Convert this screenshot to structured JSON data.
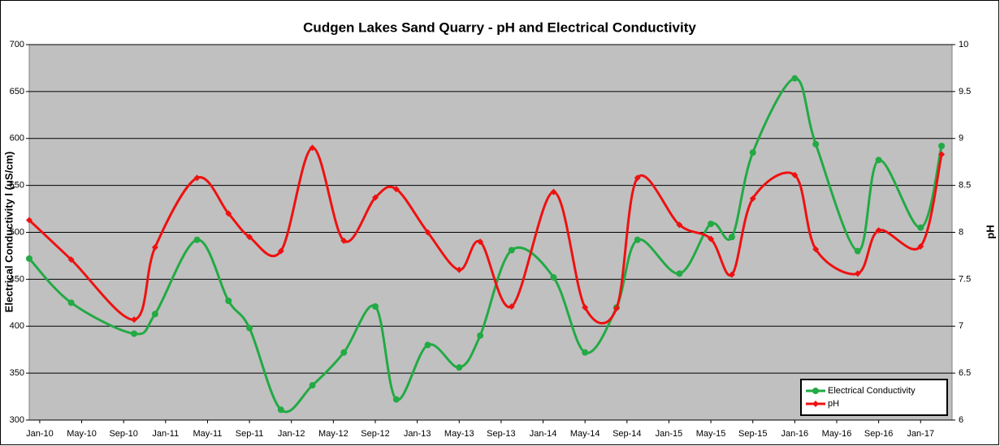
{
  "chart_data": {
    "type": "line",
    "title": "Cudgen Lakes Sand Quarry - pH and Electrical Conductivity",
    "ylabel": "Electrical Conductivity l (uS/cm)",
    "y2label": "pH",
    "x": [
      "Dec-09",
      "Apr-10",
      "Oct-10",
      "Dec-10",
      "Apr-11",
      "Jul-11",
      "Sep-11",
      "Dec-11",
      "Mar-12",
      "Jun-12",
      "Sep-12",
      "Nov-12",
      "Feb-13",
      "May-13",
      "Jul-13",
      "Oct-13",
      "Feb-14",
      "May-14",
      "Aug-14",
      "Oct-14",
      "Feb-15",
      "May-15",
      "Jul-15",
      "Sep-15",
      "Jan-16",
      "Mar-16",
      "Jul-16",
      "Sep-16",
      "Jan-17",
      "Mar-17"
    ],
    "series": [
      {
        "name": "Electrical Conductivity",
        "color": "#22aa44",
        "marker": "circle",
        "axis": "y",
        "values": [
          472,
          425,
          392,
          413,
          492,
          427,
          398,
          311,
          337,
          372,
          421,
          322,
          380,
          356,
          390,
          481,
          452,
          372,
          420,
          492,
          456,
          509,
          495,
          585,
          664,
          594,
          480,
          577,
          505,
          592
        ]
      },
      {
        "name": "pH",
        "color": "#ee1111",
        "marker": "diamond",
        "axis": "y2",
        "values": [
          8.13,
          7.71,
          7.07,
          7.84,
          8.58,
          8.2,
          7.95,
          7.8,
          8.9,
          7.91,
          8.37,
          8.46,
          8.0,
          7.6,
          7.9,
          7.21,
          8.43,
          7.2,
          7.19,
          8.58,
          8.08,
          7.93,
          7.55,
          8.36,
          8.61,
          7.82,
          7.56,
          8.02,
          7.85,
          8.83
        ]
      }
    ],
    "xlim": [
      "Dec-09",
      "Apr-17"
    ],
    "xticks": [
      "Jan-10",
      "May-10",
      "Sep-10",
      "Jan-11",
      "May-11",
      "Sep-11",
      "Jan-12",
      "May-12",
      "Sep-12",
      "Jan-13",
      "May-13",
      "Sep-13",
      "Jan-14",
      "May-14",
      "Sep-14",
      "Jan-15",
      "May-15",
      "Sep-15",
      "Jan-16",
      "May-16",
      "Sep-16",
      "Jan-17"
    ],
    "ylim": [
      300,
      700
    ],
    "yticks": [
      300,
      350,
      400,
      450,
      500,
      550,
      600,
      650,
      700
    ],
    "y2lim": [
      6,
      10
    ],
    "y2ticks": [
      6,
      6.5,
      7,
      7.5,
      8,
      8.5,
      9,
      9.5,
      10
    ],
    "grid": true,
    "smooth": true,
    "legend": "lower right"
  }
}
